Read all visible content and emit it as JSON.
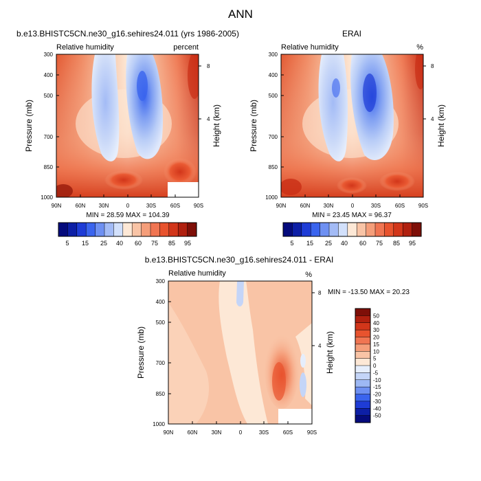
{
  "page": {
    "title": "ANN"
  },
  "chart_data": [
    {
      "type": "heatmap",
      "title": "b.e13.BHISTC5CN.ne30_g16.sehires24.011 (yrs 1986-2005)",
      "subtitle_left": "Relative humidity",
      "subtitle_right": "percent",
      "ylabel": "Pressure (mb)",
      "ylabel_right": "Height (km)",
      "x_ticks": [
        "90N",
        "60N",
        "30N",
        "0",
        "30S",
        "60S",
        "90S"
      ],
      "y_ticks": [
        "300",
        "400",
        "500",
        "700",
        "850",
        "1000"
      ],
      "y_ticks_right": [
        "8",
        "4"
      ],
      "stats": "MIN = 28.59  MAX = 104.39",
      "min": 28.59,
      "max": 104.39
    },
    {
      "type": "heatmap",
      "title": "ERAI",
      "subtitle_left": "Relative humidity",
      "subtitle_right": "%",
      "ylabel": "Pressure (mb)",
      "ylabel_right": "Height (km)",
      "x_ticks": [
        "90N",
        "60N",
        "30N",
        "0",
        "30S",
        "60S",
        "90S"
      ],
      "y_ticks": [
        "300",
        "400",
        "500",
        "700",
        "850",
        "1000"
      ],
      "y_ticks_right": [
        "8",
        "4"
      ],
      "stats": "MIN = 23.45  MAX = 96.37",
      "min": 23.45,
      "max": 96.37
    },
    {
      "type": "heatmap",
      "title": "b.e13.BHISTC5CN.ne30_g16.sehires24.011 - ERAI",
      "subtitle_left": "Relative humidity",
      "subtitle_right": "%",
      "ylabel": "Pressure (mb)",
      "ylabel_right": "Height (km)",
      "x_ticks": [
        "90N",
        "60N",
        "30N",
        "0",
        "30S",
        "60S",
        "90S"
      ],
      "y_ticks": [
        "300",
        "400",
        "500",
        "700",
        "850",
        "1000"
      ],
      "y_ticks_right": [
        "8",
        "4"
      ],
      "stats": "MIN = -13.50  MAX =  20.23",
      "min": -13.5,
      "max": 20.23
    }
  ],
  "colorbar_abs": {
    "labels": [
      "5",
      "15",
      "25",
      "40",
      "60",
      "75",
      "85",
      "95"
    ],
    "colors": [
      "#050b7c",
      "#0d1fa6",
      "#1e3cd6",
      "#3a64ee",
      "#6e90f2",
      "#a3bbf6",
      "#d2e0fb",
      "#fde8d6",
      "#f9c4a6",
      "#f59e7a",
      "#f07552",
      "#e8532e",
      "#d2361a",
      "#b0200f",
      "#7e0f08"
    ]
  },
  "colorbar_diff": {
    "labels": [
      "50",
      "40",
      "30",
      "20",
      "15",
      "10",
      "5",
      "0",
      "-5",
      "-10",
      "-15",
      "-20",
      "-30",
      "-40",
      "-50"
    ],
    "colors": [
      "#7e0f08",
      "#b0200f",
      "#d2361a",
      "#e8532e",
      "#f07552",
      "#f59e7a",
      "#f9c4a6",
      "#fde8d6",
      "#e6eefc",
      "#c4d5f8",
      "#9db8f4",
      "#6e90f2",
      "#3a64ee",
      "#1e3cd6",
      "#0d1fa6",
      "#050b7c"
    ]
  }
}
